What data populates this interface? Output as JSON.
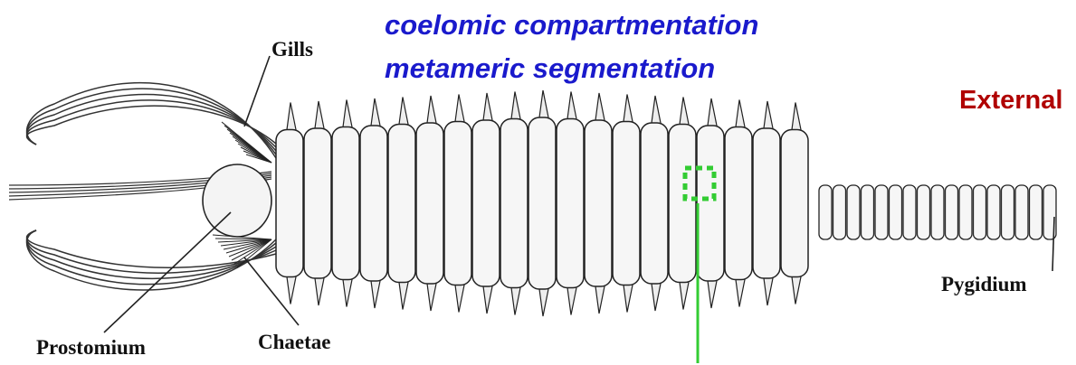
{
  "headings": [
    "coelomic compartmentation",
    "metameric segmentation"
  ],
  "section": "External",
  "labels": {
    "gills": "Gills",
    "prostomium": "Prostomium",
    "chaetae": "Chaetae",
    "pygidium": "Pygidium"
  }
}
